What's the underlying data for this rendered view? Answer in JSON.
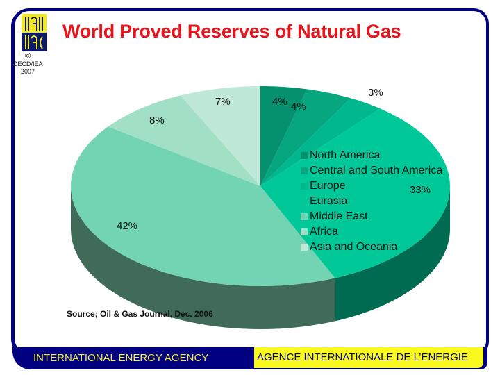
{
  "header": {
    "title": "World Proved Reserves of Natural Gas",
    "copyright_symbol": "©",
    "copyright_org": "OECD/IEA",
    "copyright_year": "2007"
  },
  "footer": {
    "left": "INTERNATIONAL ENERGY AGENCY",
    "right": "AGENCE INTERNATIONALE DE L’ENERGIE"
  },
  "source": "Source; Oil & Gas Journal, Dec. 2006",
  "colors": {
    "frame": "#000080",
    "title": "#e8141c",
    "footer_bg": "#000080",
    "footer_left_text": "#f5ef3a",
    "footer_right_bg": "#fafa1e"
  },
  "chart_data": {
    "type": "pie",
    "title": "World Proved Reserves of Natural Gas",
    "subtitle": "",
    "categories": [
      "North America",
      "Central and South America",
      "Europe",
      "Eurasia",
      "Middle East",
      "Africa",
      "Asia and Oceania"
    ],
    "values": [
      4,
      4,
      3,
      33,
      42,
      8,
      7
    ],
    "labels": [
      "4%",
      "4%",
      "3%",
      "33%",
      "42%",
      "8%",
      "7%"
    ],
    "colors": [
      "#05916e",
      "#06a67f",
      "#00b88e",
      "#00c898",
      "#72d4b2",
      "#a2e0c6",
      "#bfe8d8"
    ],
    "side_colors": [
      "#006b50",
      "#006b50",
      "#006b50",
      "#006b50",
      "#3f6b58",
      "#3f6b58",
      "#3f6b58"
    ],
    "legend_position": "inside-right",
    "annotations": [
      "Source; Oil & Gas Journal, Dec. 2006"
    ],
    "style": "3d-pie"
  }
}
